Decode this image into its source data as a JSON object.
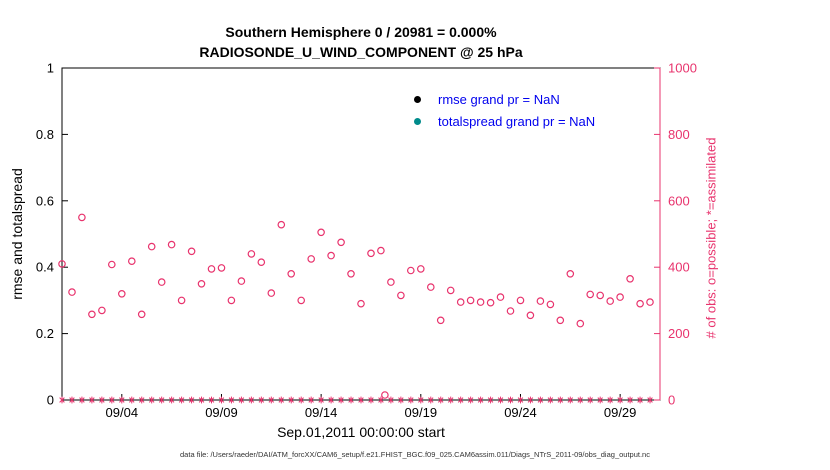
{
  "titles": {
    "line1": "Southern Hemisphere 0 / 20981 = 0.000%",
    "line2": "RADIOSONDE_U_WIND_COMPONENT @ 25 hPa"
  },
  "axes": {
    "left_label": "rmse and totalspread",
    "right_label": "# of obs: o=possible; *=assimilated",
    "x_label": "Sep.01,2011 00:00:00 start",
    "left_ticks": [
      "0",
      "0.2",
      "0.4",
      "0.6",
      "0.8",
      "1"
    ],
    "right_ticks": [
      "0",
      "200",
      "400",
      "600",
      "800",
      "1000"
    ],
    "x_ticks": [
      {
        "day": 3,
        "label": "09/04"
      },
      {
        "day": 8,
        "label": "09/09"
      },
      {
        "day": 13,
        "label": "09/14"
      },
      {
        "day": 18,
        "label": "09/19"
      },
      {
        "day": 23,
        "label": "09/24"
      },
      {
        "day": 28,
        "label": "09/29"
      }
    ]
  },
  "legend": [
    {
      "name": "rmse",
      "label": "rmse grand pr = NaN",
      "color": "#000000"
    },
    {
      "name": "totalspread",
      "label": "totalspread grand pr = NaN",
      "color": "#008b8b"
    }
  ],
  "colors": {
    "obs": "#e8336d",
    "legend_text": "#0000ee",
    "axis": "#000000",
    "totalspread": "#008b8b"
  },
  "caption": "data file: /Users/raeder/DAI/ATM_forcXX/CAM6_setup/f.e21.FHIST_BGC.f09_025.CAM6assim.011/Diags_NTrS_2011-09/obs_diag_output.nc",
  "chart_data": {
    "type": "scatter",
    "title": "Southern Hemisphere 0 / 20981 = 0.000%",
    "subtitle": "RADIOSONDE_U_WIND_COMPONENT @ 25 hPa",
    "xlabel": "Sep.01,2011 00:00:00 start",
    "ylabel_left": "rmse and totalspread",
    "ylabel_right": "# of obs: o=possible; *=assimilated",
    "x_unit": "days since Sep.01,2011 00:00:00",
    "xlim": [
      0,
      30
    ],
    "ylim_left": [
      0,
      1
    ],
    "ylim_right": [
      0,
      1000
    ],
    "grid": false,
    "legend_position": "top-inside",
    "series": [
      {
        "name": "possible_obs",
        "marker": "circle",
        "axis": "right",
        "points": [
          [
            0,
            410
          ],
          [
            0.5,
            325
          ],
          [
            1,
            550
          ],
          [
            1.5,
            258
          ],
          [
            2,
            270
          ],
          [
            2.5,
            408
          ],
          [
            3,
            320
          ],
          [
            3.5,
            418
          ],
          [
            4,
            258
          ],
          [
            4.5,
            462
          ],
          [
            5,
            355
          ],
          [
            5.5,
            468
          ],
          [
            6,
            300
          ],
          [
            6.5,
            448
          ],
          [
            7,
            350
          ],
          [
            7.5,
            395
          ],
          [
            8,
            398
          ],
          [
            8.5,
            300
          ],
          [
            9,
            358
          ],
          [
            9.5,
            440
          ],
          [
            10,
            415
          ],
          [
            10.5,
            322
          ],
          [
            11,
            528
          ],
          [
            11.5,
            380
          ],
          [
            12,
            300
          ],
          [
            12.5,
            425
          ],
          [
            13,
            505
          ],
          [
            13.5,
            435
          ],
          [
            14,
            475
          ],
          [
            14.5,
            380
          ],
          [
            15,
            290
          ],
          [
            15.5,
            442
          ],
          [
            16,
            450
          ],
          [
            16.2,
            15
          ],
          [
            16.5,
            355
          ],
          [
            17,
            315
          ],
          [
            17.5,
            390
          ],
          [
            18,
            395
          ],
          [
            18.5,
            340
          ],
          [
            19,
            240
          ],
          [
            19.5,
            330
          ],
          [
            20,
            295
          ],
          [
            20.5,
            300
          ],
          [
            21,
            295
          ],
          [
            21.5,
            293
          ],
          [
            22,
            310
          ],
          [
            22.5,
            268
          ],
          [
            23,
            300
          ],
          [
            23.5,
            255
          ],
          [
            24,
            298
          ],
          [
            24.5,
            288
          ],
          [
            25,
            240
          ],
          [
            25.5,
            380
          ],
          [
            26,
            230
          ],
          [
            26.5,
            318
          ],
          [
            27,
            315
          ],
          [
            27.5,
            298
          ],
          [
            28,
            310
          ],
          [
            28.5,
            365
          ],
          [
            29,
            290
          ],
          [
            29.5,
            295
          ]
        ]
      },
      {
        "name": "assimilated_obs",
        "marker": "asterisk",
        "axis": "right",
        "points_gen": {
          "start": 0,
          "end": 29.5,
          "step": 0.5,
          "value": 0
        }
      },
      {
        "name": "rmse grand pr",
        "value": "NaN"
      },
      {
        "name": "totalspread grand pr",
        "value": "NaN"
      }
    ]
  }
}
